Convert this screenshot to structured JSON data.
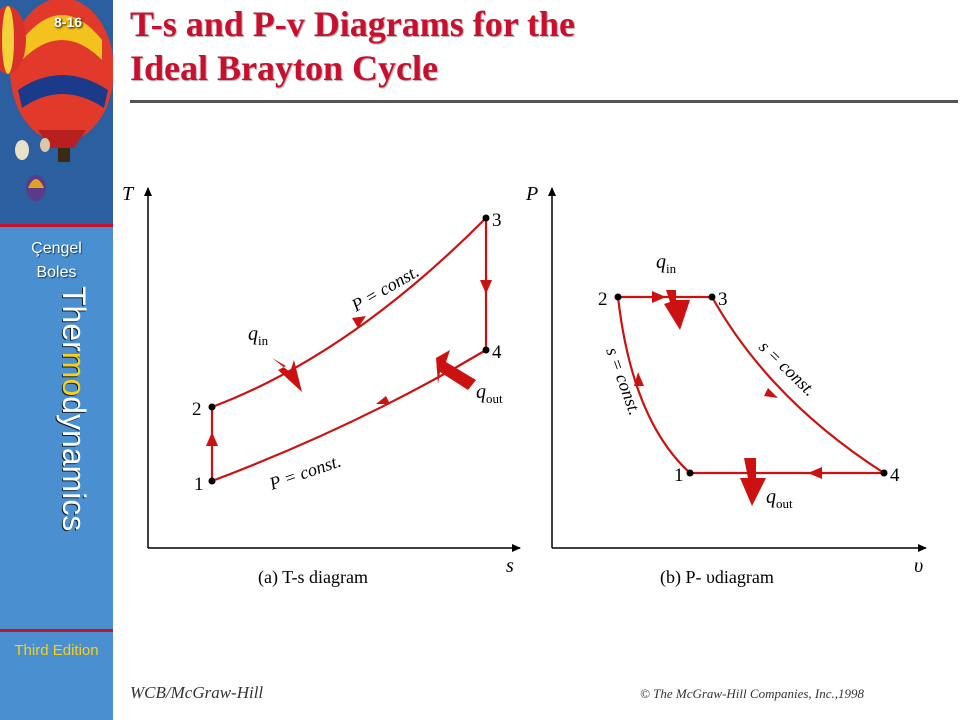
{
  "slide": {
    "number": "8-16",
    "title_line1": "T-s and P-v Diagrams for the",
    "title_line2": "Ideal Brayton Cycle"
  },
  "sidebar": {
    "author1": "Çengel",
    "author2": "Boles",
    "book_title_a": "Ther",
    "book_title_b": "mo",
    "book_title_c": "dynamics",
    "edition": "Third Edition"
  },
  "ts_diagram": {
    "y_axis": "T",
    "x_axis": "s",
    "state_1": "1",
    "state_2": "2",
    "state_3": "3",
    "state_4": "4",
    "upper_process": "P = const.",
    "lower_process": "P = const.",
    "heat_in": "q",
    "heat_in_sub": "in",
    "heat_out": "q",
    "heat_out_sub": "out",
    "caption": "(a) T-s diagram"
  },
  "pv_diagram": {
    "y_axis": "P",
    "x_axis": "υ",
    "state_1": "1",
    "state_2": "2",
    "state_3": "3",
    "state_4": "4",
    "left_process": "s = const.",
    "right_process": "s = const.",
    "heat_in": "q",
    "heat_in_sub": "in",
    "heat_out": "q",
    "heat_out_sub": "out",
    "caption": "(b) P- υdiagram"
  },
  "footer": {
    "publisher": "WCB/McGraw-Hill",
    "copyright": "© The McGraw-Hill Companies, Inc.,1998"
  },
  "colors": {
    "accent_red": "#c8102e",
    "sidebar_blue": "#4a8fd0",
    "edition_yellow": "#f7d117"
  }
}
